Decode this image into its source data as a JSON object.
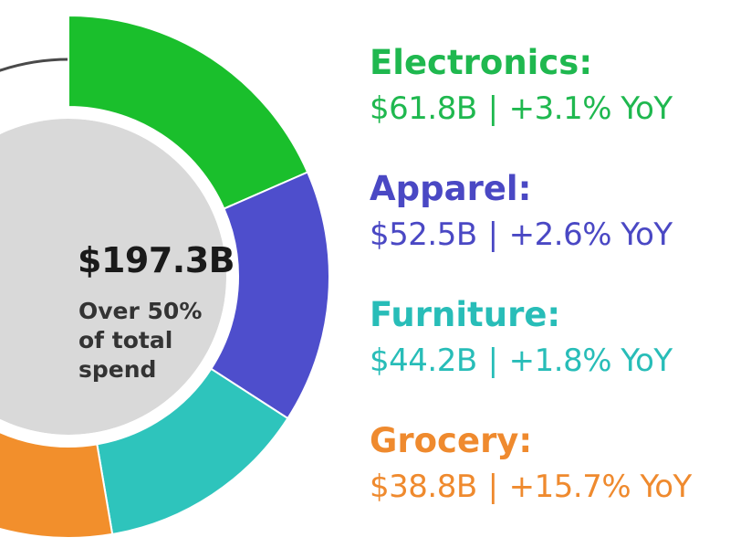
{
  "chart_data": {
    "type": "donut",
    "total_label": "$197.3B",
    "note": "Over 50%\nof total\nspend",
    "separator": "|",
    "series": [
      {
        "name": "Electronics:",
        "value": 61.8,
        "value_label": "$61.8B",
        "yoy": "+3.1% YoY",
        "color": "#1abf2c",
        "label_color": "#1fb84f"
      },
      {
        "name": "Apparel:",
        "value": 52.5,
        "value_label": "$52.5B",
        "yoy": "+2.6% YoY",
        "color": "#4e4ecc",
        "label_color": "#4a48c4"
      },
      {
        "name": "Furniture:",
        "value": 44.2,
        "value_label": "$44.2B",
        "yoy": "+1.8% YoY",
        "color": "#2ec4bc",
        "label_color": "#28bdb8"
      },
      {
        "name": "Grocery:",
        "value": 38.8,
        "value_label": "$38.8B",
        "yoy": "+15.7% YoY",
        "color": "#f28f2c",
        "label_color": "#ef8a2e"
      }
    ],
    "remainder_color": "#d9d9d9",
    "ring_gap_color": "#ffffff",
    "other_ring_color": "#4a4a4a"
  }
}
